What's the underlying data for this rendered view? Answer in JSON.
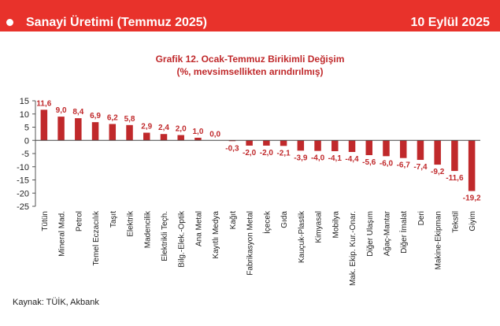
{
  "header": {
    "title": "Sanayi Üretimi (Temmuz 2025)",
    "date": "10 Eylül 2025"
  },
  "colors": {
    "banner": "#e8322b",
    "bar": "#c0292b",
    "label": "#c0292b",
    "title": "#c0292b"
  },
  "chart_data": {
    "type": "bar",
    "title": "Grafik 12. Ocak-Temmuz Birikimli Değişim",
    "subtitle": "(%, mevsimsellikten arındırılmış)",
    "xlabel": "",
    "ylabel": "",
    "ylim": [
      -25,
      15
    ],
    "yticks": [
      15,
      10,
      5,
      0,
      -5,
      -10,
      -15,
      -20,
      -25
    ],
    "grid": false,
    "categories": [
      "Tütün",
      "Mineral Mad.",
      "Petrol",
      "Temel Eczacılık",
      "Taşıt",
      "Elektrik",
      "Madencilik",
      "Elektrikli Teçh.",
      "Bilg.-Elek.-Optik",
      "Ana Metal",
      "Kayıtlı Medya",
      "Kağıt",
      "Fabrikasyon Metal",
      "İçecek",
      "Gıda",
      "Kauçuk-Plastik",
      "Kimyasal",
      "Mobilya",
      "Mak. Ekip. Kur.-Onar.",
      "Diğer Ulaşım",
      "Ağaç-Mantar",
      "Diğer İmalat",
      "Deri",
      "Makine-Ekipman",
      "Tekstil",
      "Giyim"
    ],
    "values": [
      11.6,
      9.0,
      8.4,
      6.9,
      6.2,
      5.8,
      2.9,
      2.4,
      2.0,
      1.0,
      0.0,
      -0.3,
      -2.0,
      -2.0,
      -2.1,
      -3.9,
      -4.0,
      -4.1,
      -4.4,
      -5.6,
      -6.0,
      -6.7,
      -7.4,
      -9.2,
      -11.6,
      -19.2
    ],
    "data_labels": [
      "11,6",
      "9,0",
      "8,4",
      "6,9",
      "6,2",
      "5,8",
      "2,9",
      "2,4",
      "2,0",
      "1,0",
      "0,0",
      "-0,3",
      "-2,0",
      "-2,0",
      "-2,1",
      "-3,9",
      "-4,0",
      "-4,1",
      "-4,4",
      "-5,6",
      "-6,0",
      "-6,7",
      "-7,4",
      "-9,2",
      "-11,6",
      "-19,2"
    ]
  },
  "footer": {
    "source": "Kaynak: TÜİK, Akbank"
  }
}
